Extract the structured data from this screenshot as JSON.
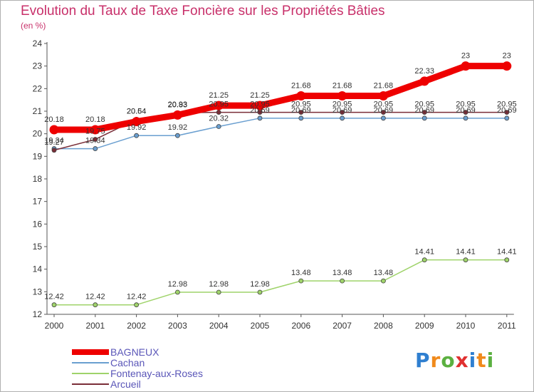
{
  "title": "Evolution du Taux de Taxe Foncière sur les Propriétés Bâties",
  "unit": "(en %)",
  "logo": {
    "letters": [
      "P",
      "r",
      "o",
      "x",
      "i",
      "t",
      "i"
    ],
    "colors": [
      "#2f7fd0",
      "#f08a1c",
      "#5bb040",
      "#e03030",
      "#2f7fd0",
      "#f08a1c",
      "#5bb040"
    ]
  },
  "chart_data": {
    "type": "line",
    "categories": [
      "2000",
      "2001",
      "2002",
      "2003",
      "2004",
      "2005",
      "2006",
      "2007",
      "2008",
      "2009",
      "2010",
      "2011"
    ],
    "ylim": [
      12,
      24
    ],
    "yticks": [
      12,
      13,
      14,
      15,
      16,
      17,
      18,
      19,
      20,
      21,
      22,
      23,
      24
    ],
    "grid": false,
    "legend_position": "bottom-left",
    "series": [
      {
        "name": "BAGNEUX",
        "color": "#ee0000",
        "values": [
          20.18,
          20.18,
          20.54,
          20.83,
          21.25,
          21.25,
          21.68,
          21.68,
          21.68,
          22.33,
          23,
          23
        ]
      },
      {
        "name": "Cachan",
        "color": "#6a9fd0",
        "values": [
          19.34,
          19.34,
          19.92,
          19.92,
          20.32,
          20.69,
          20.69,
          20.69,
          20.69,
          20.69,
          20.69,
          20.69
        ]
      },
      {
        "name": "Fontenay-aux-Roses",
        "color": "#9fd36a",
        "values": [
          12.42,
          12.42,
          12.42,
          12.98,
          12.98,
          12.98,
          13.48,
          13.48,
          13.48,
          14.41,
          14.41,
          14.41
        ]
      },
      {
        "name": "Arcueil",
        "color": "#7a2e38",
        "values": [
          19.27,
          19.75,
          20.64,
          20.93,
          20.95,
          20.95,
          20.95,
          20.95,
          20.95,
          20.95,
          20.95,
          20.95
        ]
      }
    ]
  }
}
